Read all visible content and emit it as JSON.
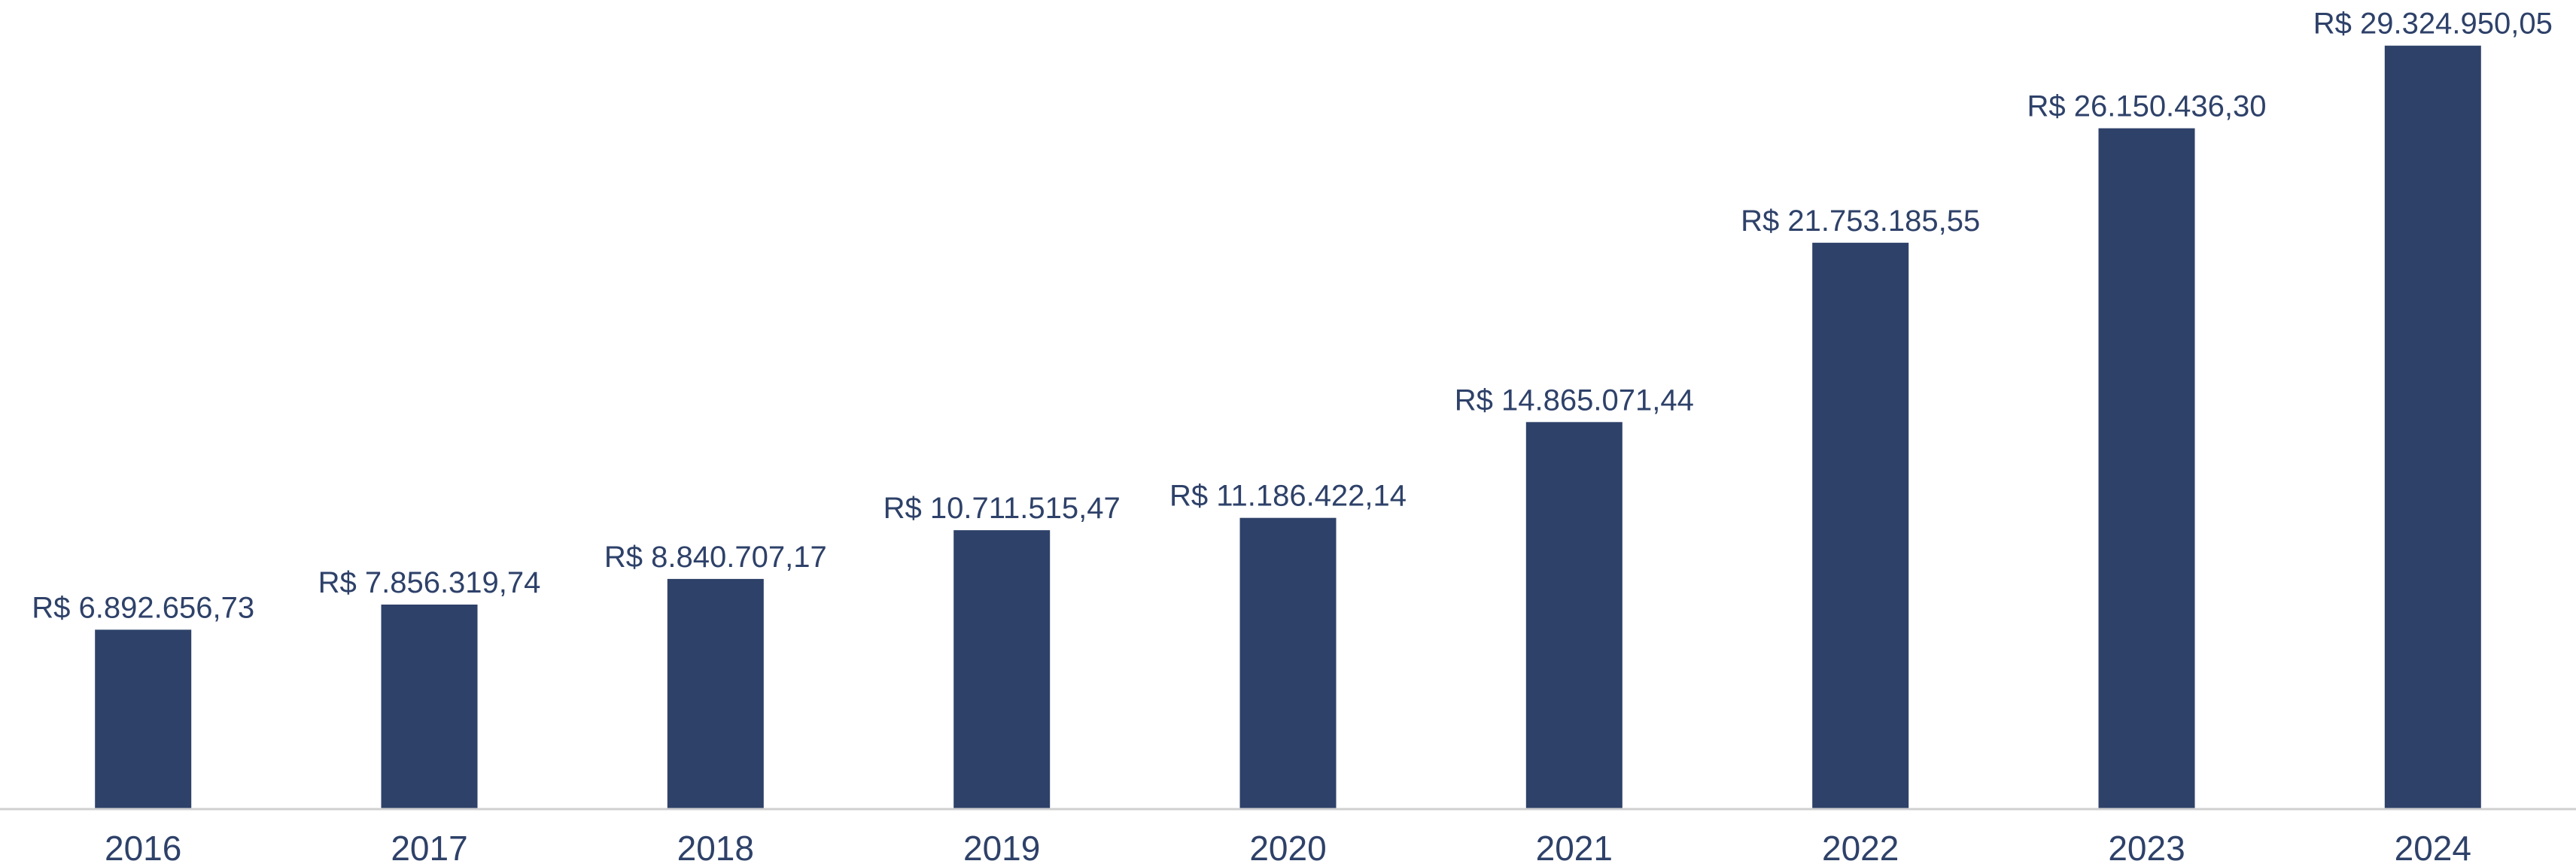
{
  "chart_data": {
    "type": "bar",
    "title": "",
    "xlabel": "",
    "ylabel": "",
    "categories": [
      "2016",
      "2017",
      "2018",
      "2019",
      "2020",
      "2021",
      "2022",
      "2023",
      "2024"
    ],
    "values": [
      6892656.73,
      7856319.74,
      8840707.17,
      10711515.47,
      11186422.14,
      14865071.44,
      21753185.55,
      26150436.3,
      29324950.05
    ],
    "value_labels": [
      "R$ 6.892.656,73",
      "R$ 7.856.319,74",
      "R$ 8.840.707,17",
      "R$ 10.711.515,47",
      "R$ 11.186.422,14",
      "R$ 14.865.071,44",
      "R$ 21.753.185,55",
      "R$ 26.150.436,30",
      "R$ 29.324.950,05"
    ],
    "ylim": [
      0,
      30500000
    ],
    "grid": false,
    "legend": "none",
    "bar_color": "#2e4169",
    "axis_color": "#d0d0d0",
    "text_color": "#2e4169"
  }
}
